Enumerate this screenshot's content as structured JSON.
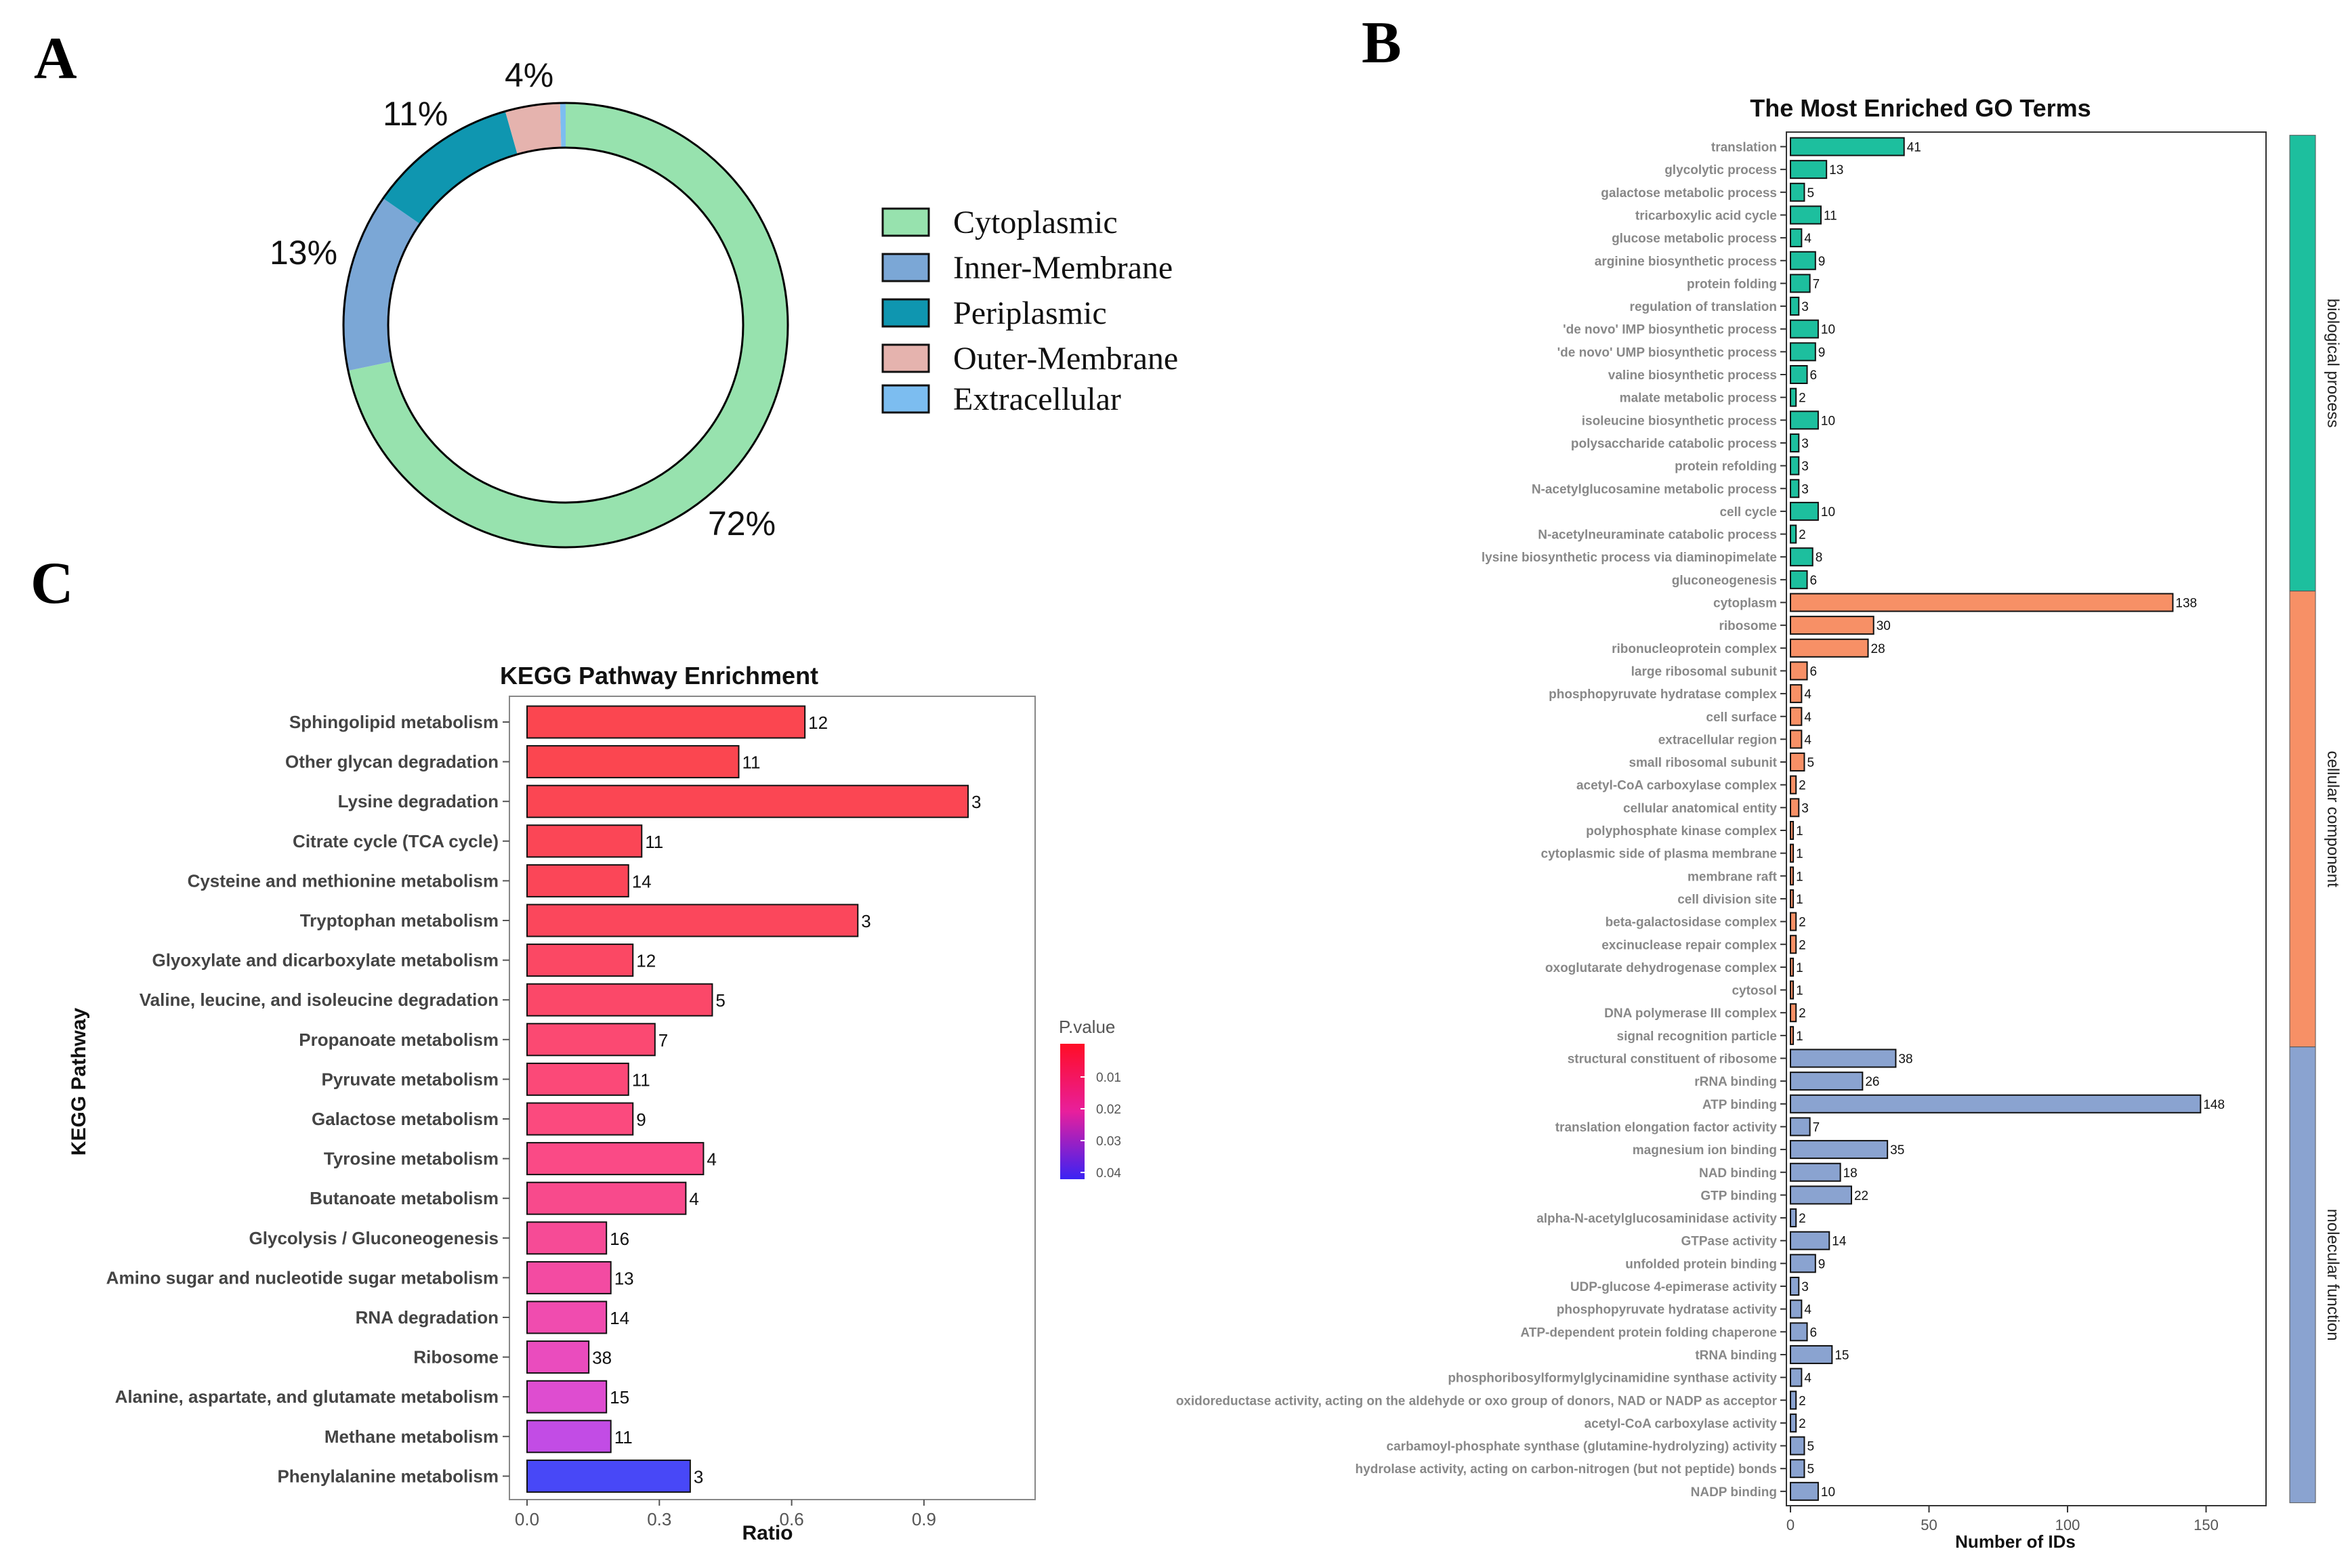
{
  "panels": {
    "a": "A",
    "b": "B",
    "c": "C"
  },
  "chart_data": [
    {
      "type": "pie",
      "donut": true,
      "categories": [
        "Cytoplasmic",
        "Inner-Membrane",
        "Periplasmic",
        "Outer-Membrane",
        "Extracellular"
      ],
      "values": [
        72,
        13,
        11,
        4,
        0.4
      ],
      "labels": [
        "72%",
        "13%",
        "11%",
        "4%",
        ""
      ],
      "colors": [
        "#97e2ae",
        "#7ba7d6",
        "#0f96b0",
        "#e5b3ae",
        "#7cbdf0"
      ],
      "legend_position": "right"
    },
    {
      "type": "bar",
      "orientation": "horizontal",
      "title": "The Most Enriched GO Terms",
      "xlabel": "Number of IDs",
      "xlim": [
        0,
        170
      ],
      "xticks": [
        0,
        50,
        100,
        150
      ],
      "groups": [
        {
          "name": "biological process",
          "color": "#1dbf9e",
          "categories": [
            "translation",
            "glycolytic process",
            "galactose metabolic process",
            "tricarboxylic acid cycle",
            "glucose metabolic process",
            "arginine biosynthetic process",
            "protein folding",
            "regulation of translation",
            "'de novo' IMP biosynthetic process",
            "'de novo' UMP biosynthetic process",
            "valine biosynthetic process",
            "malate metabolic process",
            "isoleucine biosynthetic process",
            "polysaccharide catabolic process",
            "protein refolding",
            "N-acetylglucosamine metabolic process",
            "cell cycle",
            "N-acetylneuraminate catabolic process",
            "lysine biosynthetic process via diaminopimelate",
            "gluconeogenesis"
          ],
          "values": [
            41,
            13,
            5,
            11,
            4,
            9,
            7,
            3,
            10,
            9,
            6,
            2,
            10,
            3,
            3,
            3,
            10,
            2,
            8,
            6
          ]
        },
        {
          "name": "cellular component",
          "color": "#f79066",
          "categories": [
            "cytoplasm",
            "ribosome",
            "ribonucleoprotein complex",
            "large ribosomal subunit",
            "phosphopyruvate hydratase complex",
            "cell surface",
            "extracellular region",
            "small ribosomal subunit",
            "acetyl-CoA carboxylase complex",
            "cellular anatomical entity",
            "polyphosphate kinase complex",
            "cytoplasmic side of plasma membrane",
            "membrane raft",
            "cell division site",
            "beta-galactosidase complex",
            "excinuclease repair complex",
            "oxoglutarate dehydrogenase complex",
            "cytosol",
            "DNA polymerase III complex",
            "signal recognition particle"
          ],
          "values": [
            138,
            30,
            28,
            6,
            4,
            4,
            4,
            5,
            2,
            3,
            1,
            1,
            1,
            1,
            2,
            2,
            1,
            1,
            2,
            1
          ]
        },
        {
          "name": "molecular function",
          "color": "#8aa3d0",
          "categories": [
            "structural constituent of ribosome",
            "rRNA binding",
            "ATP binding",
            "translation elongation factor activity",
            "magnesium ion binding",
            "NAD binding",
            "GTP binding",
            "alpha-N-acetylglucosaminidase activity",
            "GTPase activity",
            "unfolded protein binding",
            "UDP-glucose 4-epimerase activity",
            "phosphopyruvate hydratase activity",
            "ATP-dependent protein folding chaperone",
            "tRNA binding",
            "phosphoribosylformylglycinamidine synthase activity",
            "oxidoreductase activity, acting on the aldehyde or oxo group of donors, NAD or NADP as acceptor",
            "acetyl-CoA carboxylase activity",
            "carbamoyl-phosphate synthase (glutamine-hydrolyzing) activity",
            "hydrolase activity, acting on carbon-nitrogen (but not peptide) bonds",
            "NADP binding"
          ],
          "values": [
            38,
            26,
            148,
            7,
            35,
            18,
            22,
            2,
            14,
            9,
            3,
            4,
            6,
            15,
            4,
            2,
            2,
            5,
            5,
            10
          ]
        }
      ]
    },
    {
      "type": "bar",
      "orientation": "horizontal",
      "title": "KEGG Pathway Enrichment",
      "xlabel": "Ratio",
      "ylabel": "KEGG Pathway",
      "xlim": [
        -0.05,
        1.15
      ],
      "xticks": [
        0.0,
        0.3,
        0.6,
        0.9
      ],
      "xtick_labels": [
        "0.0",
        "0.3",
        "0.6",
        "0.9"
      ],
      "categories": [
        "Sphingolipid metabolism",
        "Other glycan degradation",
        "Lysine degradation",
        "Citrate cycle (TCA cycle)",
        "Cysteine and methionine metabolism",
        "Tryptophan metabolism",
        "Glyoxylate and dicarboxylate metabolism",
        "Valine, leucine, and isoleucine degradation",
        "Propanoate metabolism",
        "Pyruvate metabolism",
        "Galactose metabolism",
        "Tyrosine metabolism",
        "Butanoate metabolism",
        "Glycolysis / Gluconeogenesis",
        "Amino sugar and nucleotide sugar metabolism",
        "RNA degradation",
        "Ribosome",
        "Alanine, aspartate, and glutamate metabolism",
        "Methane metabolism",
        "Phenylalanine metabolism"
      ],
      "values": [
        0.63,
        0.48,
        1.0,
        0.26,
        0.23,
        0.75,
        0.24,
        0.42,
        0.29,
        0.23,
        0.24,
        0.4,
        0.36,
        0.18,
        0.19,
        0.18,
        0.14,
        0.18,
        0.19,
        0.37
      ],
      "counts": [
        "12",
        "11",
        "3",
        "11",
        "14",
        "3",
        "12",
        "5",
        "7",
        "11",
        "9",
        "4",
        "4",
        "16",
        "13",
        "14",
        "38",
        "15",
        "11",
        "3"
      ],
      "bar_colors": [
        "#fb4650",
        "#fb4650",
        "#fb4653",
        "#fb4656",
        "#fb4658",
        "#fb475c",
        "#fb4864",
        "#fb4869",
        "#fb4972",
        "#fb4978",
        "#fb4a7e",
        "#fa4a86",
        "#f84a8c",
        "#f64b96",
        "#f34ba2",
        "#f04caf",
        "#ea4cbe",
        "#de4dd0",
        "#c24ce5",
        "#4848f7"
      ],
      "legend": {
        "title": "P.value",
        "ticks": [
          "0.01",
          "0.02",
          "0.03",
          "0.04"
        ],
        "colors": [
          "#ff0d26",
          "#3a22f4"
        ]
      }
    }
  ]
}
